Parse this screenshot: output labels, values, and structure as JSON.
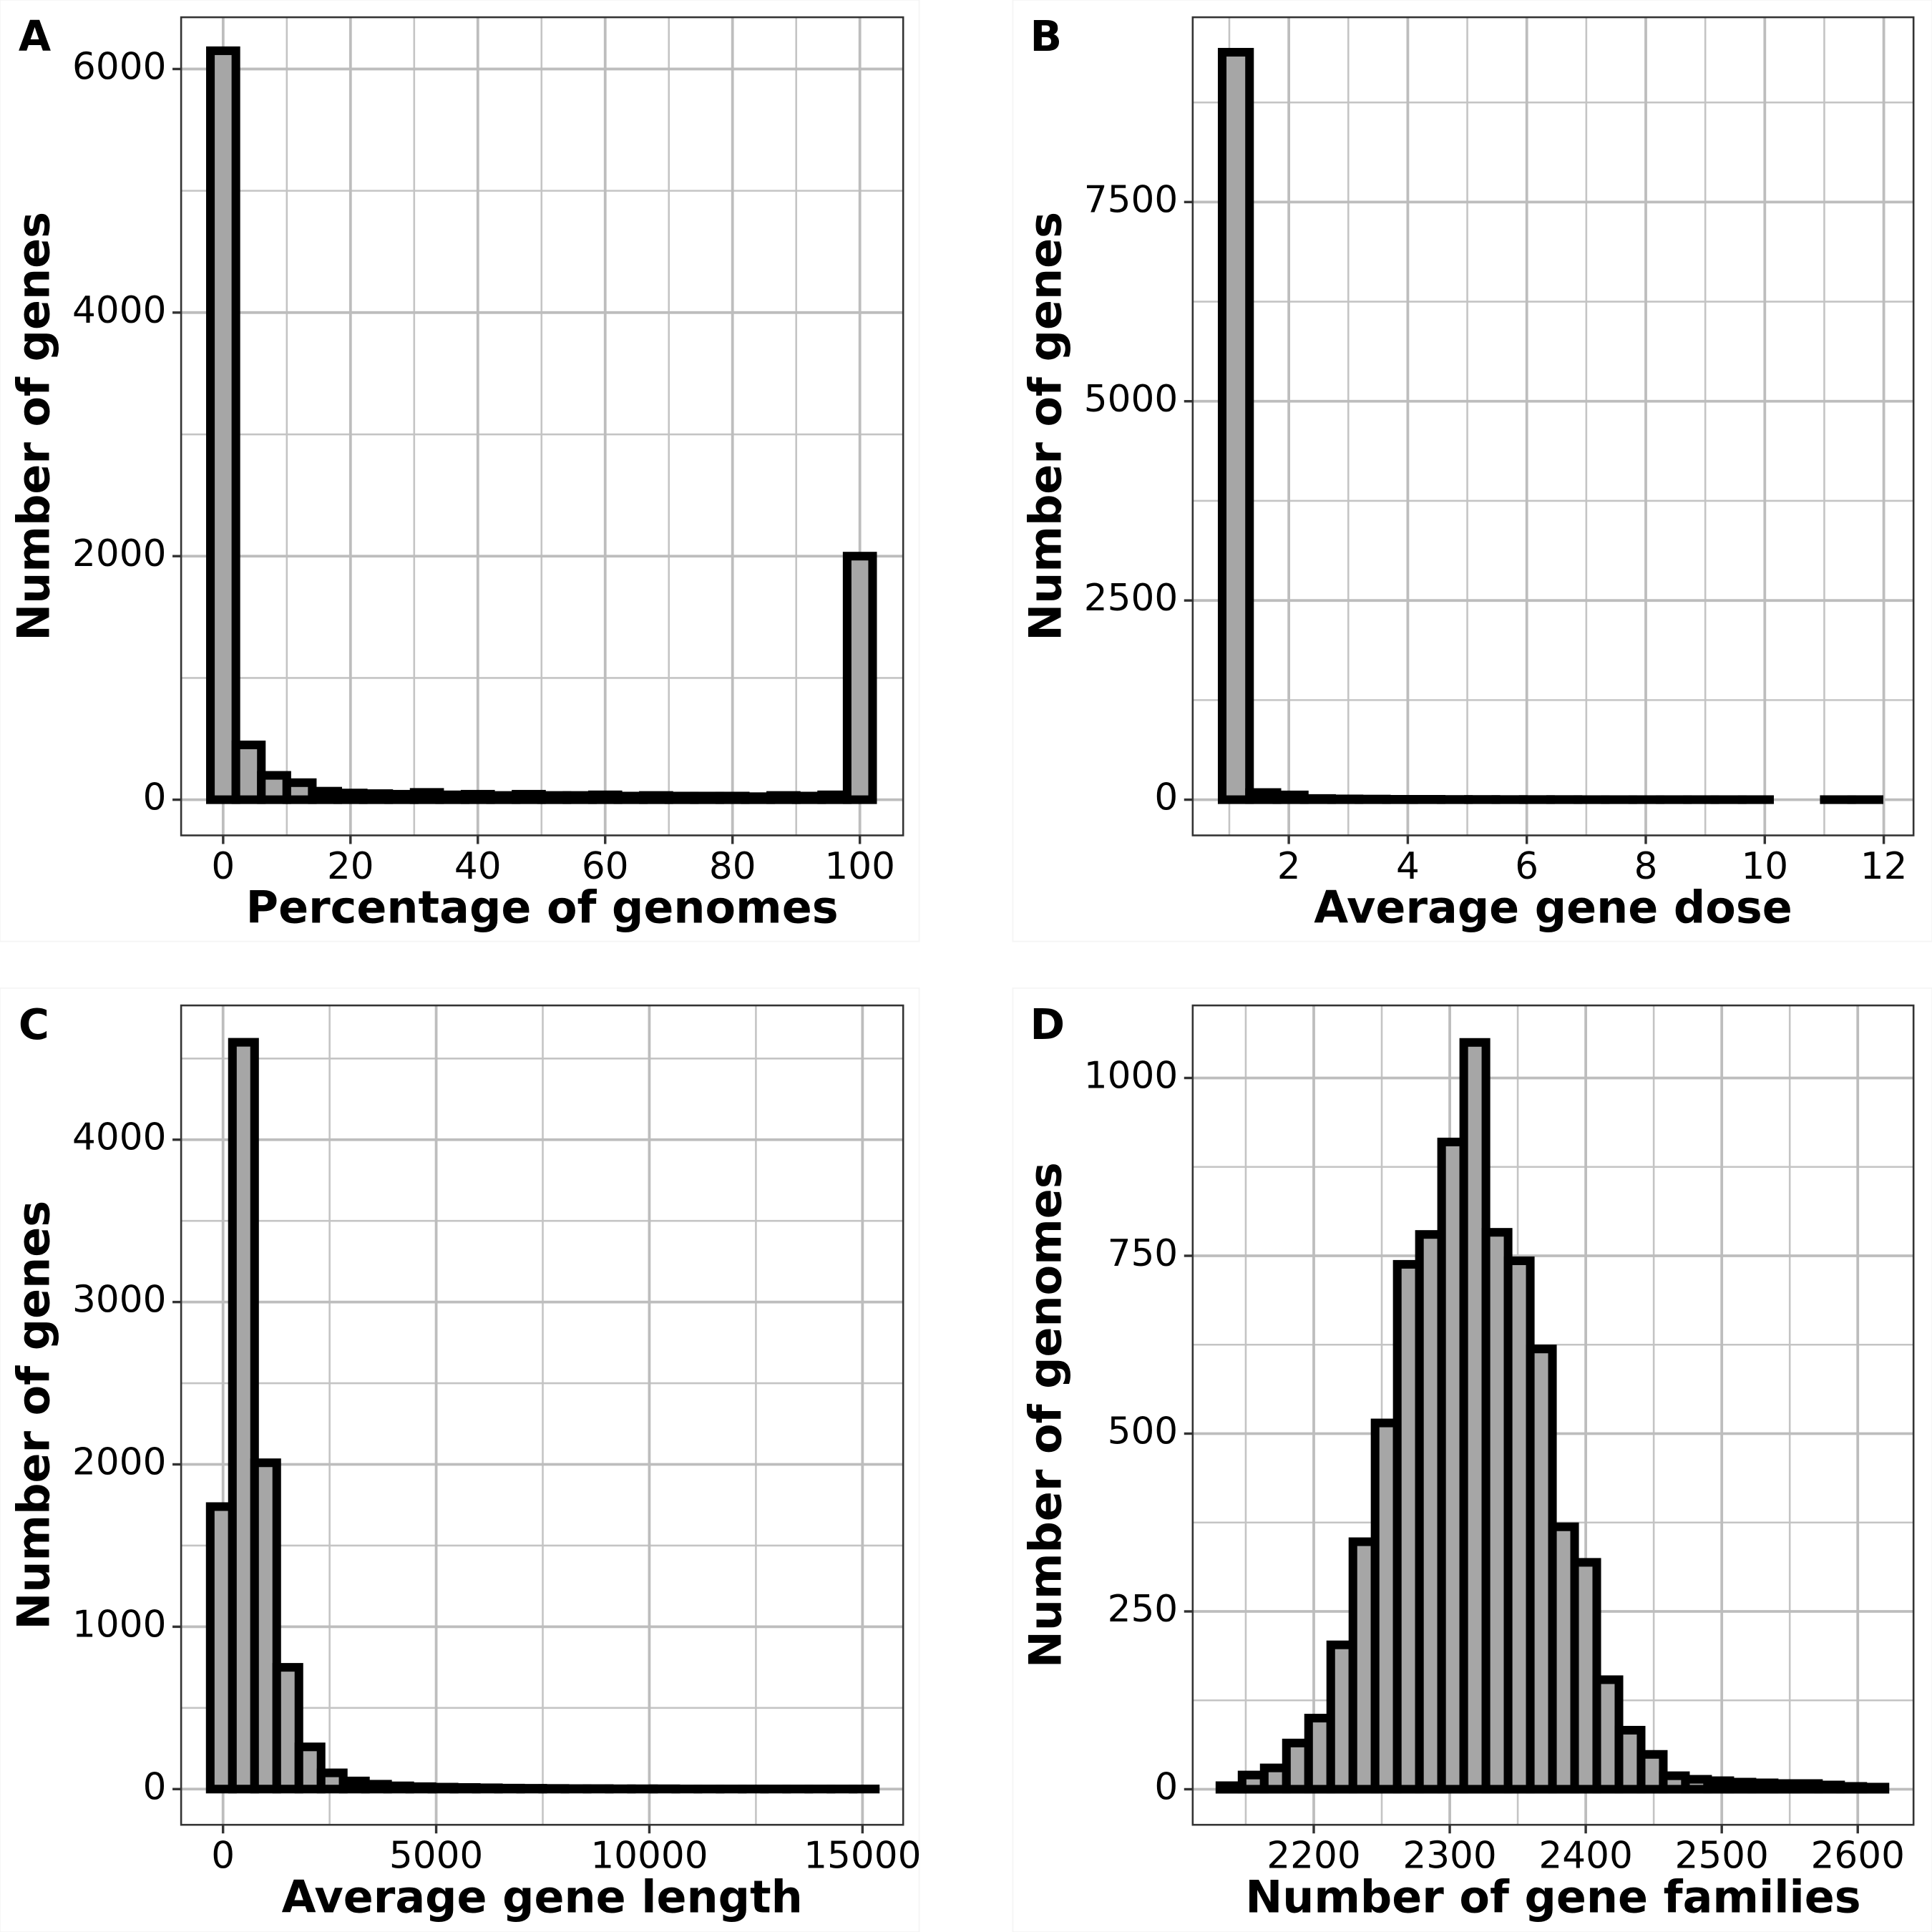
{
  "chart_data": [
    {
      "type": "histogram",
      "panel_label": "A",
      "x_label": "Percentage of genomes",
      "y_label": "Number of genes",
      "bins": [
        -2,
        2,
        6,
        10,
        14,
        18,
        22,
        26,
        30,
        34,
        38,
        42,
        46,
        50,
        54,
        58,
        62,
        66,
        70,
        74,
        78,
        82,
        86,
        90,
        94,
        98,
        102
      ],
      "values": [
        6150,
        450,
        200,
        140,
        70,
        55,
        50,
        45,
        60,
        40,
        45,
        35,
        45,
        35,
        35,
        40,
        30,
        35,
        30,
        30,
        30,
        25,
        35,
        30,
        40,
        2000
      ],
      "color": "#a6a6a6",
      "edge_color": "#000000",
      "xlim": [
        -6.6,
        106.8
      ],
      "ylim": [
        -293,
        6425
      ],
      "xticks": [
        0,
        20,
        40,
        60,
        80,
        100
      ],
      "yticks": [
        0,
        2000,
        4000,
        6000
      ],
      "minor_xticks": [
        10,
        30,
        50,
        70,
        90
      ],
      "minor_yticks": [
        1000,
        3000,
        5000
      ],
      "grid": true
    },
    {
      "type": "histogram",
      "panel_label": "B",
      "x_label": "Average gene dose",
      "y_label": "Number of genes",
      "bins": [
        0.88,
        1.34,
        1.8,
        2.26,
        2.72,
        3.18,
        3.64,
        4.1,
        4.56,
        5.02,
        5.48,
        5.94,
        6.4,
        6.86,
        7.32,
        7.78,
        8.24,
        8.7,
        9.16,
        9.62,
        10.08,
        10.54,
        11.0,
        11.46,
        11.92
      ],
      "values": [
        9380,
        90,
        60,
        15,
        10,
        8,
        5,
        5,
        3,
        3,
        2,
        2,
        2,
        1,
        1,
        1,
        1,
        1,
        1,
        1,
        0,
        0,
        1,
        1
      ],
      "color": "#a6a6a6",
      "edge_color": "#000000",
      "xlim": [
        0.385,
        12.5
      ],
      "ylim": [
        -448,
        9819
      ],
      "xticks": [
        2,
        4,
        6,
        8,
        10,
        12
      ],
      "yticks": [
        0,
        2500,
        5000,
        7500
      ],
      "minor_xticks": [
        1,
        3,
        5,
        7,
        9,
        11
      ],
      "minor_yticks": [
        1250,
        3750,
        6250,
        8750
      ],
      "grid": true
    },
    {
      "type": "histogram",
      "panel_label": "C",
      "x_label": "Average gene length",
      "y_label": "Number of genes",
      "bins": [
        -300,
        220,
        740,
        1260,
        1780,
        2300,
        2820,
        3340,
        3860,
        4380,
        4900,
        5420,
        5940,
        6460,
        6980,
        7500,
        8020,
        8540,
        9060,
        9580,
        10100,
        10620,
        11140,
        11660,
        12180,
        12700,
        13220,
        13740,
        14260,
        14780,
        15300
      ],
      "values": [
        1740,
        4600,
        2010,
        750,
        260,
        100,
        50,
        30,
        20,
        15,
        12,
        10,
        8,
        6,
        5,
        4,
        3,
        3,
        2,
        2,
        2,
        1,
        1,
        1,
        1,
        1,
        1,
        1,
        1,
        1
      ],
      "color": "#a6a6a6",
      "edge_color": "#000000",
      "xlim": [
        -983,
        15954
      ],
      "ylim": [
        -220,
        4827
      ],
      "xticks": [
        0,
        5000,
        10000,
        15000
      ],
      "yticks": [
        0,
        1000,
        2000,
        3000,
        4000
      ],
      "minor_xticks": [
        2500,
        7500,
        12500
      ],
      "minor_yticks": [
        500,
        1500,
        2500,
        3500,
        4500
      ],
      "grid": true
    },
    {
      "type": "histogram",
      "panel_label": "D",
      "x_label": "Number of gene families",
      "y_label": "Number of genomes",
      "bins": [
        2131.0,
        2147.3,
        2163.6,
        2179.9,
        2196.2,
        2212.5,
        2228.8,
        2245.1,
        2261.4,
        2277.7,
        2294.0,
        2310.3,
        2326.6,
        2342.9,
        2359.2,
        2375.5,
        2391.8,
        2408.1,
        2424.4,
        2440.7,
        2457.0,
        2473.3,
        2489.6,
        2505.9,
        2522.2,
        2538.5,
        2554.8,
        2571.1,
        2587.4,
        2603.7,
        2620.0
      ],
      "values": [
        5,
        20,
        30,
        65,
        100,
        203,
        348,
        515,
        738,
        780,
        910,
        1050,
        783,
        743,
        619,
        369,
        319,
        154,
        83,
        49,
        19,
        14,
        12,
        10,
        9,
        8,
        8,
        6,
        4,
        3
      ],
      "color": "#a6a6a6",
      "edge_color": "#000000",
      "xlim": [
        2111,
        2641
      ],
      "ylim": [
        -50,
        1102
      ],
      "xticks": [
        2200,
        2300,
        2400,
        2500,
        2600
      ],
      "yticks": [
        0,
        250,
        500,
        750,
        1000
      ],
      "minor_xticks": [
        2150,
        2250,
        2350,
        2450,
        2550
      ],
      "minor_yticks": [
        125,
        375,
        625,
        875
      ],
      "grid": true
    }
  ]
}
